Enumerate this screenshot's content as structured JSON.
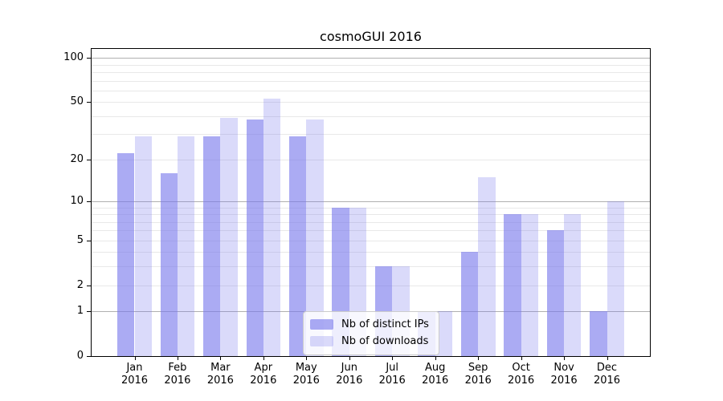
{
  "title": "cosmoGUI 2016",
  "colors": {
    "bar_base": "#7878eb",
    "ips_alpha": 0.62,
    "downloads_alpha": 0.27,
    "ips_on_white": "#a6a6f2",
    "downloads_on_white": "#dbdbf8",
    "grid_major": "#b0b0b0",
    "grid_minor": "#e8e8e8",
    "axis": "#000000",
    "legend_border": "#cccccc"
  },
  "legend": {
    "entries": [
      {
        "label": "Nb of distinct IPs",
        "series": "ips"
      },
      {
        "label": "Nb of downloads",
        "series": "downloads"
      }
    ]
  },
  "y_axis": {
    "scale": "log1p",
    "tick_values": [
      0,
      1,
      2,
      5,
      10,
      20,
      50,
      100
    ],
    "major_grid_values": [
      1,
      10,
      100
    ],
    "minor_grid_values": [
      2,
      3,
      4,
      5,
      6,
      7,
      8,
      9,
      20,
      30,
      40,
      50,
      60,
      70,
      80,
      90
    ]
  },
  "chart_data": {
    "type": "bar",
    "title": "cosmoGUI 2016",
    "categories": [
      "Jan 2016",
      "Feb 2016",
      "Mar 2016",
      "Apr 2016",
      "May 2016",
      "Jun 2016",
      "Jul 2016",
      "Aug 2016",
      "Sep 2016",
      "Oct 2016",
      "Nov 2016",
      "Dec 2016"
    ],
    "series": [
      {
        "name": "Nb of distinct IPs",
        "values": [
          22,
          16,
          29,
          38,
          29,
          9,
          3,
          1,
          4,
          8,
          6,
          1
        ]
      },
      {
        "name": "Nb of downloads",
        "values": [
          29,
          29,
          39,
          53,
          38,
          9,
          3,
          1,
          15,
          8,
          8,
          10
        ]
      }
    ],
    "xlabel": "",
    "ylabel": "",
    "ylim": [
      0,
      115
    ],
    "grid": true,
    "legend_position": "lower center"
  }
}
